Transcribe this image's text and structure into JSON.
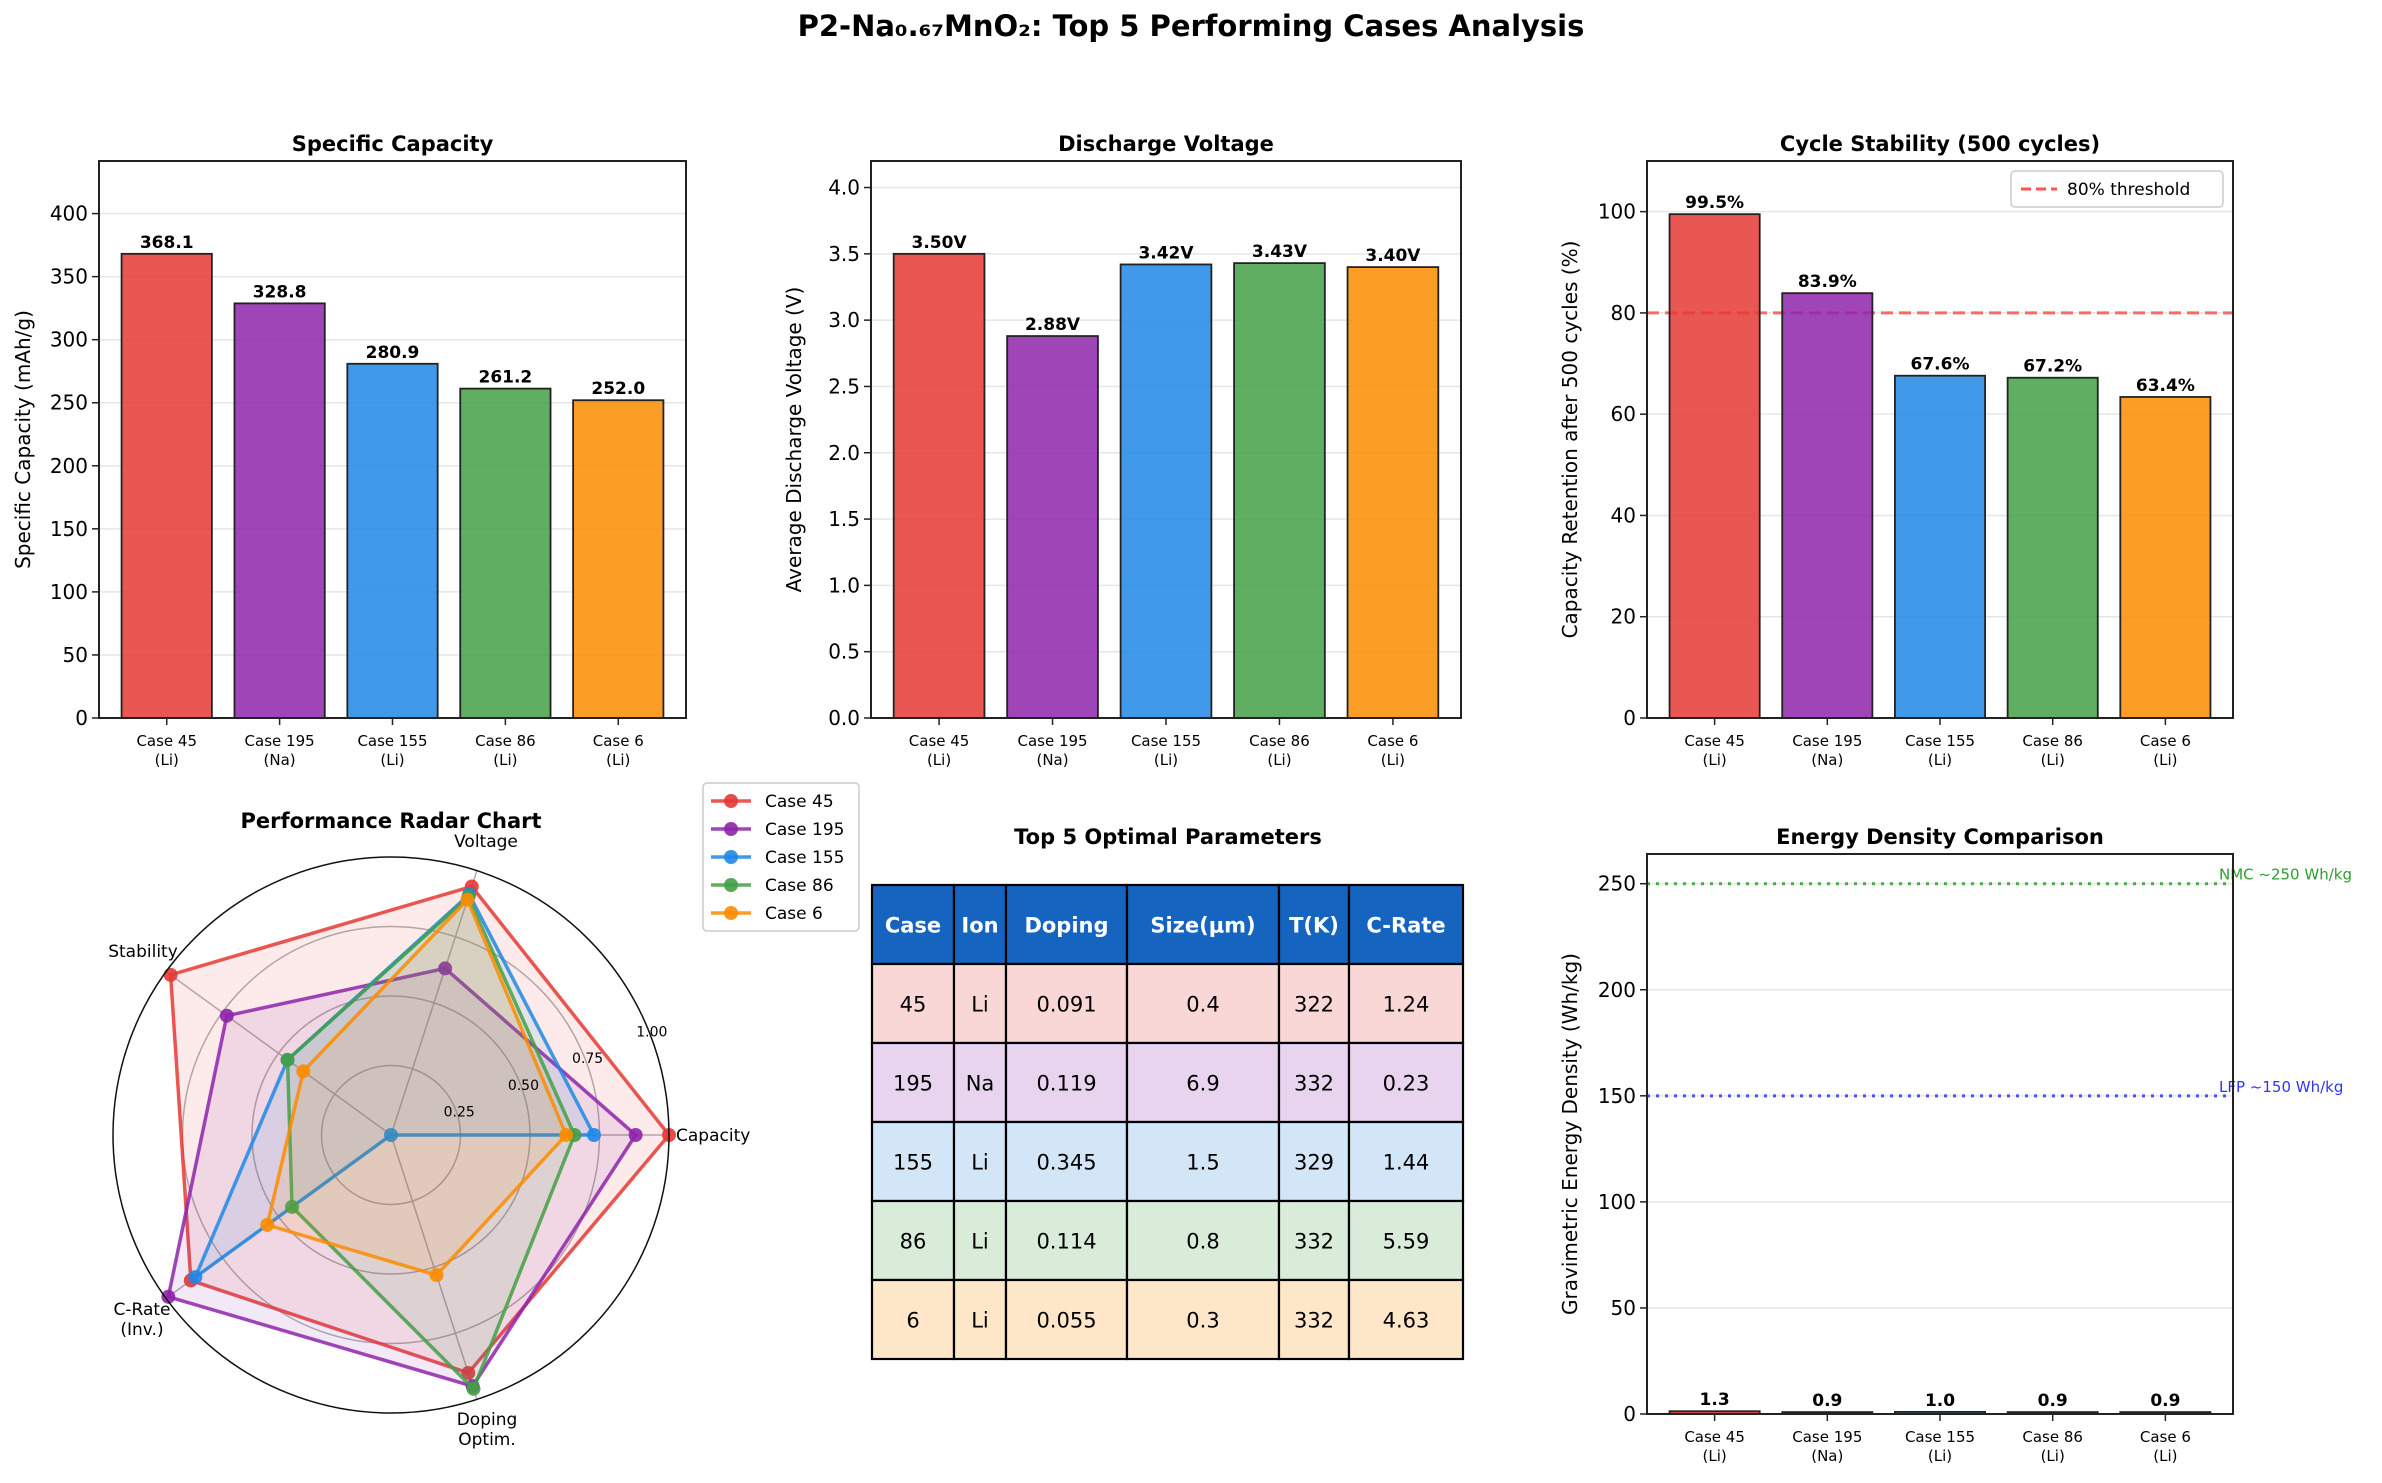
{
  "figure_title": "P2-Na₀.₆₇MnO₂: Top 5 Performing Cases Analysis",
  "chart_data": [
    {
      "id": "capacity",
      "type": "bar",
      "title": "Specific Capacity",
      "xlabel": "",
      "ylabel": "Specific Capacity (mAh/g)",
      "categories": [
        "Case 45\n(Li)",
        "Case 195\n(Na)",
        "Case 155\n(Li)",
        "Case 86\n(Li)",
        "Case 6\n(Li)"
      ],
      "values": [
        368.1,
        328.8,
        280.9,
        261.2,
        252.0
      ],
      "value_labels": [
        "368.1",
        "328.8",
        "280.9",
        "261.2",
        "252.0"
      ],
      "colors": [
        "#e53935",
        "#8e24aa",
        "#1e88e5",
        "#43a047",
        "#fb8c00"
      ],
      "ylim": [
        0,
        441.7
      ],
      "yticks": [
        0,
        50,
        100,
        150,
        200,
        250,
        300,
        350,
        400
      ],
      "ytick_labels": [
        "0",
        "50",
        "100",
        "150",
        "200",
        "250",
        "300",
        "350",
        "400"
      ],
      "grid": "y"
    },
    {
      "id": "voltage",
      "type": "bar",
      "title": "Discharge Voltage",
      "xlabel": "",
      "ylabel": "Average Discharge Voltage (V)",
      "categories": [
        "Case 45\n(Li)",
        "Case 195\n(Na)",
        "Case 155\n(Li)",
        "Case 86\n(Li)",
        "Case 6\n(Li)"
      ],
      "values": [
        3.5,
        2.88,
        3.42,
        3.43,
        3.4
      ],
      "value_labels": [
        "3.50V",
        "2.88V",
        "3.42V",
        "3.43V",
        "3.40V"
      ],
      "colors": [
        "#e53935",
        "#8e24aa",
        "#1e88e5",
        "#43a047",
        "#fb8c00"
      ],
      "ylim": [
        0,
        4.2
      ],
      "yticks": [
        0,
        0.5,
        1.0,
        1.5,
        2.0,
        2.5,
        3.0,
        3.5,
        4.0
      ],
      "ytick_labels": [
        "0.0",
        "0.5",
        "1.0",
        "1.5",
        "2.0",
        "2.5",
        "3.0",
        "3.5",
        "4.0"
      ],
      "grid": "y"
    },
    {
      "id": "stability",
      "type": "bar",
      "title": "Cycle Stability (500 cycles)",
      "xlabel": "",
      "ylabel": "Capacity Retention after 500 cycles (%)",
      "categories": [
        "Case 45\n(Li)",
        "Case 195\n(Na)",
        "Case 155\n(Li)",
        "Case 86\n(Li)",
        "Case 6\n(Li)"
      ],
      "values": [
        99.5,
        83.9,
        67.6,
        67.2,
        63.4
      ],
      "value_labels": [
        "99.5%",
        "83.9%",
        "67.6%",
        "67.2%",
        "63.4%"
      ],
      "colors": [
        "#e53935",
        "#8e24aa",
        "#1e88e5",
        "#43a047",
        "#fb8c00"
      ],
      "ylim": [
        0,
        110
      ],
      "yticks": [
        0,
        20,
        40,
        60,
        80,
        100
      ],
      "ytick_labels": [
        "0",
        "20",
        "40",
        "60",
        "80",
        "100"
      ],
      "grid": "y",
      "reference_lines": [
        {
          "y": 80,
          "label": "80% threshold",
          "color": "#ff5252",
          "style": "dashed"
        }
      ],
      "legend": {
        "position": "top-right",
        "entries": [
          "80% threshold"
        ]
      }
    },
    {
      "id": "radar",
      "type": "radar",
      "title": "Performance Radar Chart",
      "axes": [
        "Capacity",
        "Voltage",
        "Stability",
        "C-Rate\n(Inv.)",
        "Doping\nOptim."
      ],
      "rlim": [
        0,
        1
      ],
      "rticks": [
        0.25,
        0.5,
        0.75,
        1.0
      ],
      "rtick_labels": [
        "0.25",
        "0.50",
        "0.75",
        "1.00"
      ],
      "series": [
        {
          "name": "Case 45",
          "color": "#e53935",
          "values": [
            1.0,
            0.94,
            0.98,
            0.89,
            0.9
          ]
        },
        {
          "name": "Case 195",
          "color": "#8e24aa",
          "values": [
            0.88,
            0.63,
            0.73,
            0.99,
            0.95
          ]
        },
        {
          "name": "Case 155",
          "color": "#1e88e5",
          "values": [
            0.73,
            0.91,
            0.46,
            0.87,
            0.0
          ]
        },
        {
          "name": "Case 86",
          "color": "#43a047",
          "values": [
            0.66,
            0.9,
            0.46,
            0.44,
            0.96
          ]
        },
        {
          "name": "Case 6",
          "color": "#fb8c00",
          "values": [
            0.63,
            0.89,
            0.39,
            0.55,
            0.53
          ]
        }
      ],
      "legend": {
        "position": "outside-top-right"
      }
    },
    {
      "id": "params-table",
      "type": "table",
      "title": "Top 5 Optimal Parameters",
      "header_color": "#1565c0",
      "columns": [
        "Case",
        "Ion",
        "Doping",
        "Size(μm)",
        "T(K)",
        "C-Rate"
      ],
      "rows": [
        {
          "cells": [
            "45",
            "Li",
            "0.091",
            "0.4",
            "322",
            "1.24"
          ],
          "color": "#f8d7d6"
        },
        {
          "cells": [
            "195",
            "Na",
            "0.119",
            "6.9",
            "332",
            "0.23"
          ],
          "color": "#e8d4ee"
        },
        {
          "cells": [
            "155",
            "Li",
            "0.345",
            "1.5",
            "329",
            "1.44"
          ],
          "color": "#d3e6f8"
        },
        {
          "cells": [
            "86",
            "Li",
            "0.114",
            "0.8",
            "332",
            "5.59"
          ],
          "color": "#d9ebd9"
        },
        {
          "cells": [
            "6",
            "Li",
            "0.055",
            "0.3",
            "332",
            "4.63"
          ],
          "color": "#fee6c8"
        }
      ]
    },
    {
      "id": "energy",
      "type": "bar",
      "title": "Energy Density Comparison",
      "xlabel": "",
      "ylabel": "Gravimetric Energy Density (Wh/kg)",
      "categories": [
        "Case 45\n(Li)",
        "Case 195\n(Na)",
        "Case 155\n(Li)",
        "Case 86\n(Li)",
        "Case 6\n(Li)"
      ],
      "values": [
        1.3,
        0.9,
        1.0,
        0.9,
        0.9
      ],
      "value_labels": [
        "1.3",
        "0.9",
        "1.0",
        "0.9",
        "0.9"
      ],
      "colors": [
        "#e53935",
        "#8e24aa",
        "#1e88e5",
        "#43a047",
        "#fb8c00"
      ],
      "ylim": [
        0,
        264
      ],
      "yticks": [
        0,
        50,
        100,
        150,
        200,
        250
      ],
      "ytick_labels": [
        "0",
        "50",
        "100",
        "150",
        "200",
        "250"
      ],
      "grid": "y",
      "reference_lines": [
        {
          "y": 250,
          "label": "NMC ~250 Wh/kg",
          "color": "#2ca02c",
          "style": "dotted"
        },
        {
          "y": 150,
          "label": "LFP ~150 Wh/kg",
          "color": "#3333ff",
          "style": "dotted"
        }
      ]
    }
  ]
}
